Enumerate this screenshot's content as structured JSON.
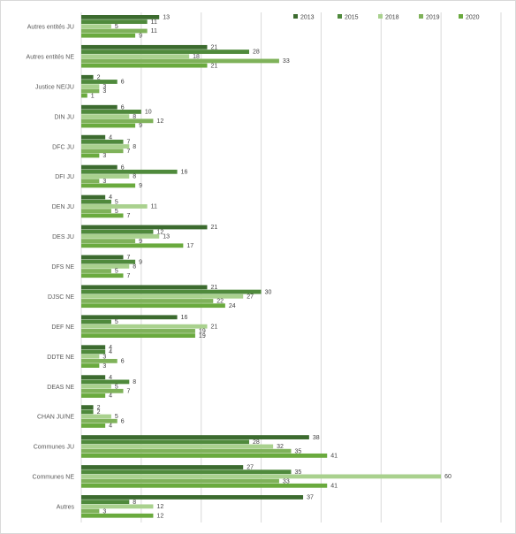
{
  "chart_data": {
    "type": "bar",
    "orientation": "horizontal",
    "title": "",
    "xlabel": "",
    "ylabel": "",
    "xlim": [
      0,
      70
    ],
    "grid": true,
    "legend_position": "top-right",
    "categories": [
      "Autres entités JU",
      "Autres entités NE",
      "Justice NE/JU",
      "DIN JU",
      "DFC JU",
      "DFI JU",
      "DEN JU",
      "DES JU",
      "DFS NE",
      "DJSC NE",
      "DEF NE",
      "DDTE NE",
      "DEAS NE",
      "CHAN JU/NE",
      "Communes JU",
      "Communes NE",
      "Autres"
    ],
    "series": [
      {
        "name": "2013",
        "color": "#3c6b2f",
        "values": [
          13,
          21,
          2,
          6,
          4,
          6,
          4,
          21,
          7,
          21,
          16,
          4,
          4,
          2,
          38,
          27,
          37
        ]
      },
      {
        "name": "2015",
        "color": "#4f8a3c",
        "values": [
          11,
          28,
          6,
          10,
          7,
          16,
          5,
          12,
          9,
          30,
          5,
          4,
          8,
          2,
          28,
          35,
          8
        ]
      },
      {
        "name": "2018",
        "color": "#a9d18e",
        "values": [
          5,
          18,
          3,
          8,
          8,
          8,
          11,
          13,
          8,
          27,
          21,
          3,
          5,
          5,
          32,
          60,
          12
        ]
      },
      {
        "name": "2019",
        "color": "#7fb25a",
        "values": [
          11,
          33,
          3,
          12,
          7,
          3,
          5,
          9,
          5,
          22,
          19,
          6,
          7,
          6,
          35,
          33,
          3
        ]
      },
      {
        "name": "2020",
        "color": "#6aaa3e",
        "values": [
          9,
          21,
          1,
          9,
          3,
          9,
          7,
          17,
          7,
          24,
          19,
          3,
          4,
          4,
          41,
          41,
          12
        ]
      }
    ]
  }
}
